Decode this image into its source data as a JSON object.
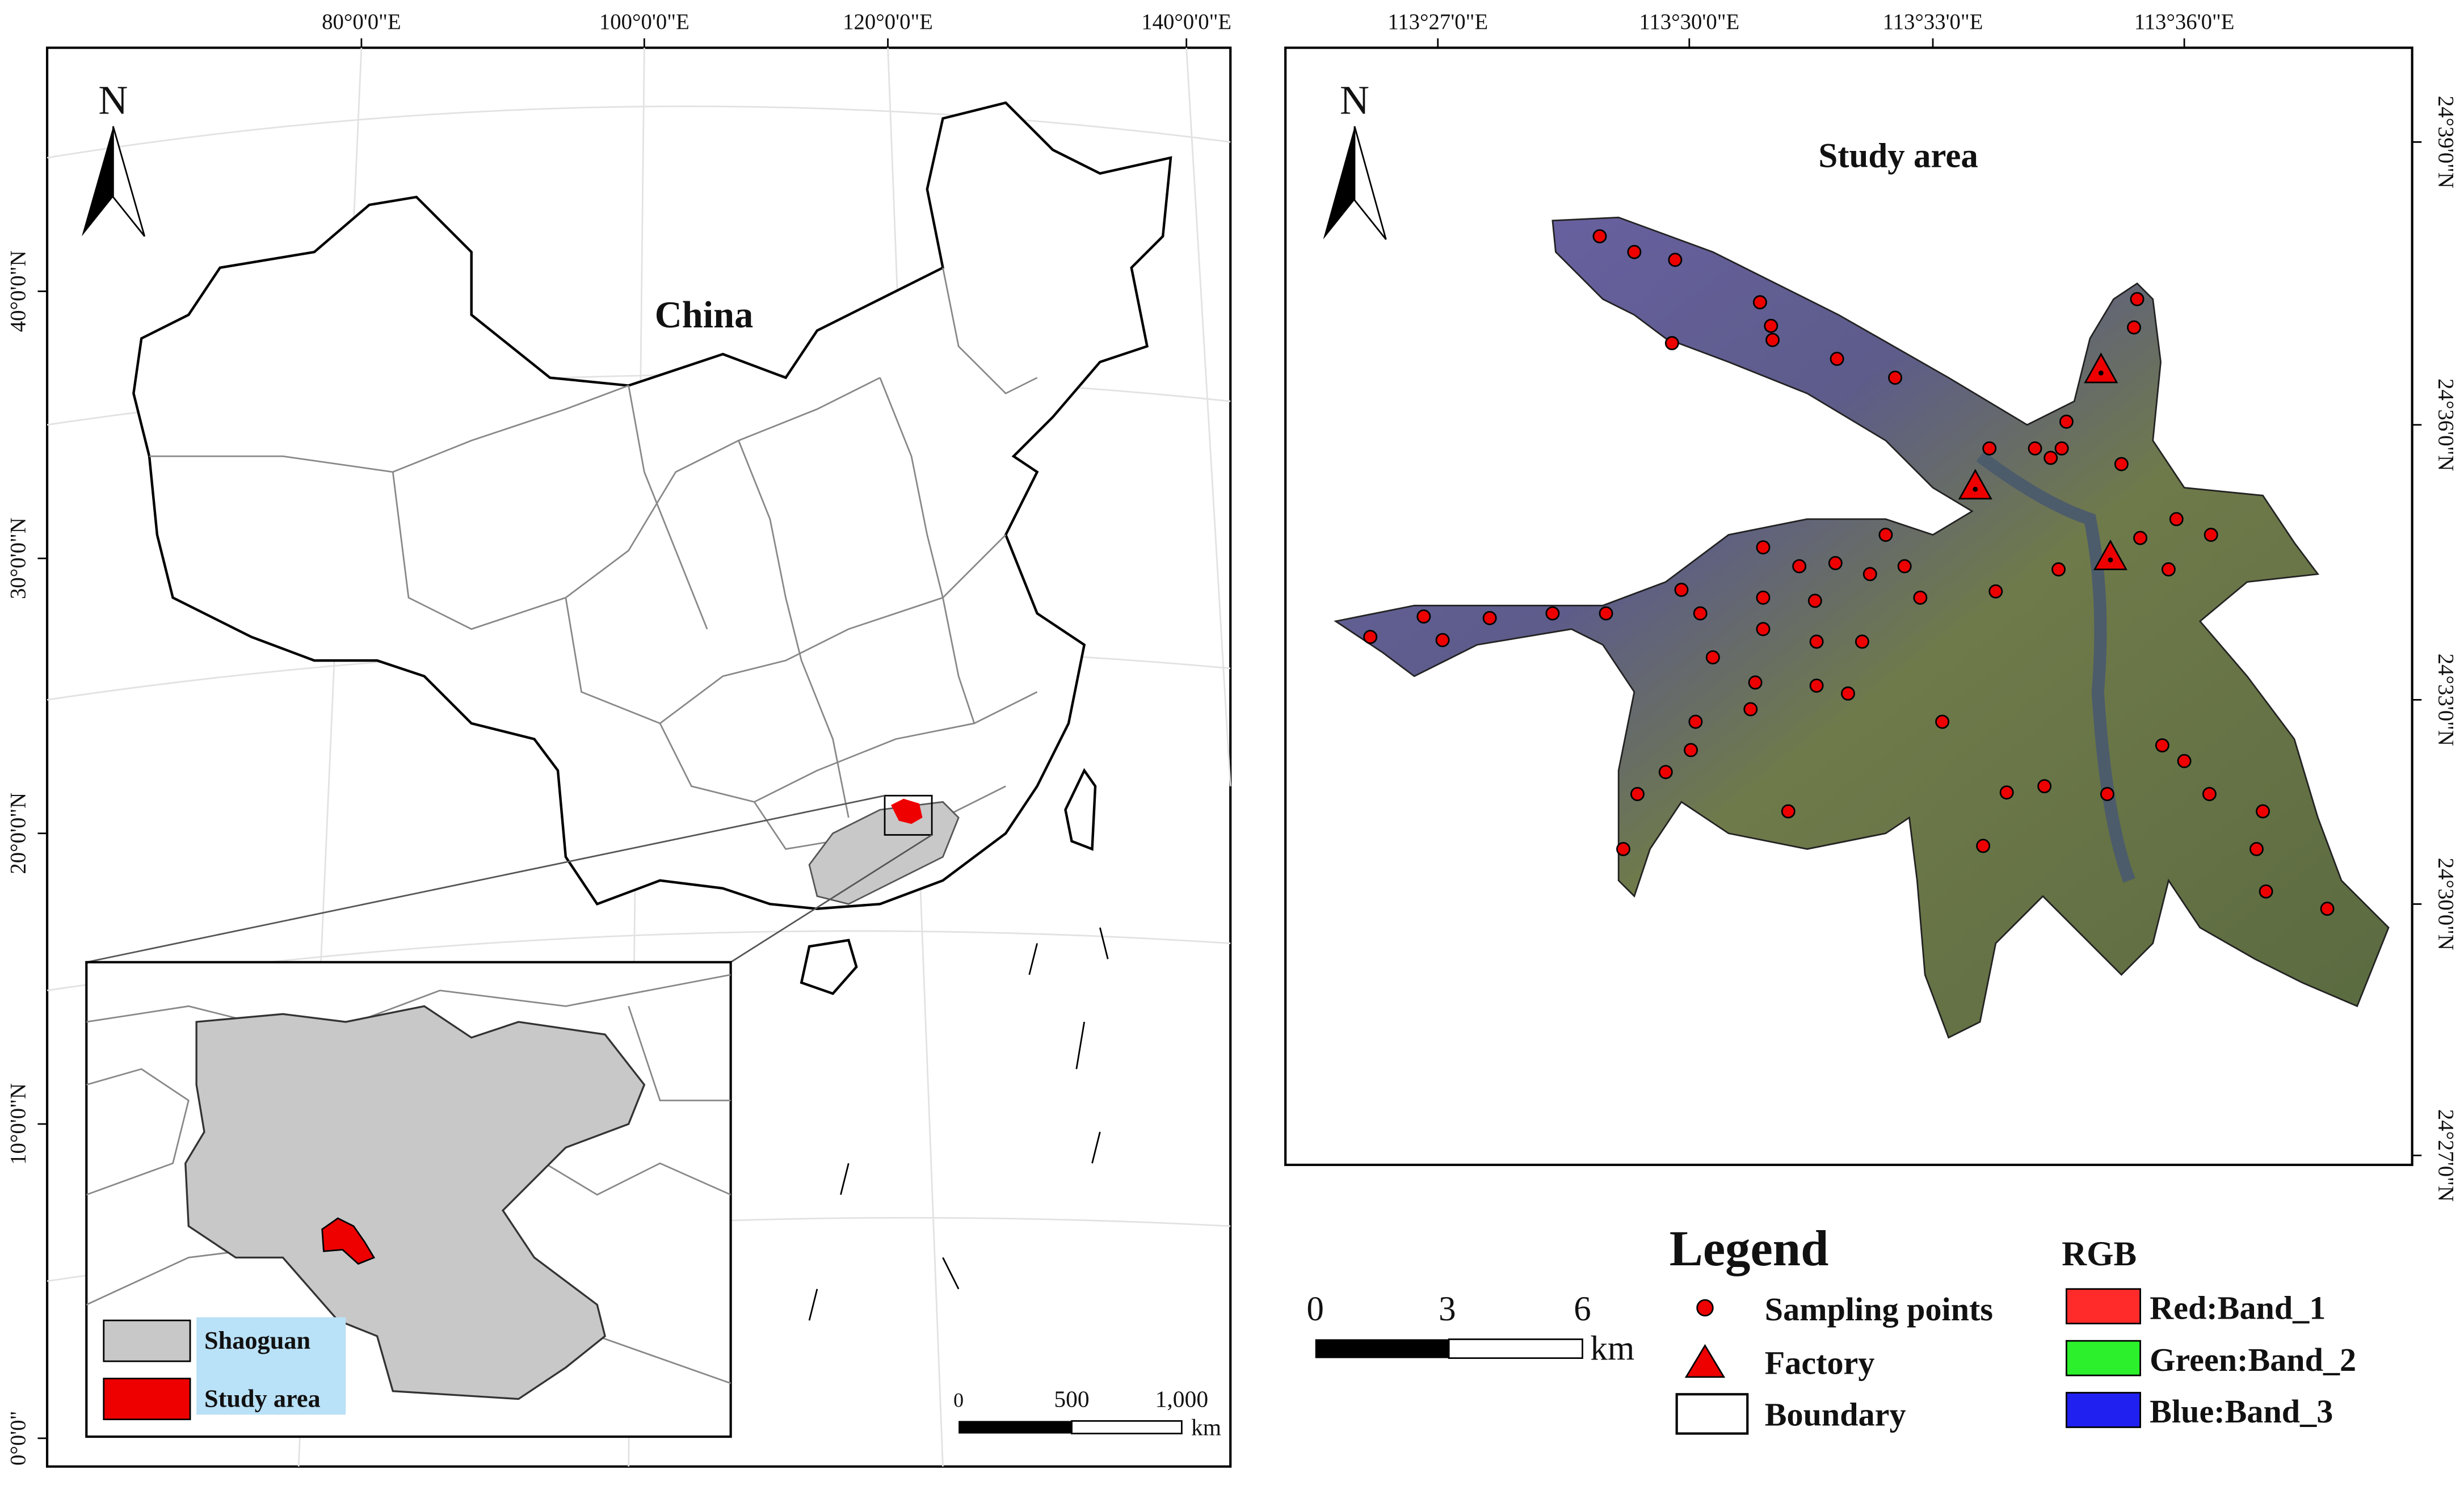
{
  "left_map": {
    "lon_labels": [
      "80°0'0\"E",
      "100°0'0\"E",
      "120°0'0\"E",
      "140°0'0\"E"
    ],
    "lat_labels": [
      "40°0'0\"N",
      "30°0'0\"N",
      "20°0'0\"N",
      "10°0'0\"N",
      "0°0'0\""
    ],
    "north": "N",
    "title": "China",
    "inset_legend": [
      "Shaoguan",
      "Study area"
    ],
    "scale_labels": [
      "0",
      "500",
      "1,000"
    ],
    "scale_unit": "km"
  },
  "right_map": {
    "lon_labels": [
      "113°27'0\"E",
      "113°30'0\"E",
      "113°33'0\"E",
      "113°36'0\"E"
    ],
    "lat_labels": [
      "24°39'0\"N",
      "24°36'0\"N",
      "24°33'0\"N",
      "24°30'0\"N",
      "24°27'0\"N"
    ],
    "north": "N",
    "title": "Study area"
  },
  "legend": {
    "title": "Legend",
    "items": [
      "Sampling points",
      "Factory",
      "Boundary"
    ],
    "rgb_title": "RGB",
    "rgb_items": [
      "Red:Band_1",
      "Green:Band_2",
      "Blue:Band_3"
    ],
    "scale_labels": [
      "0",
      "3",
      "6"
    ],
    "scale_unit": "km"
  }
}
